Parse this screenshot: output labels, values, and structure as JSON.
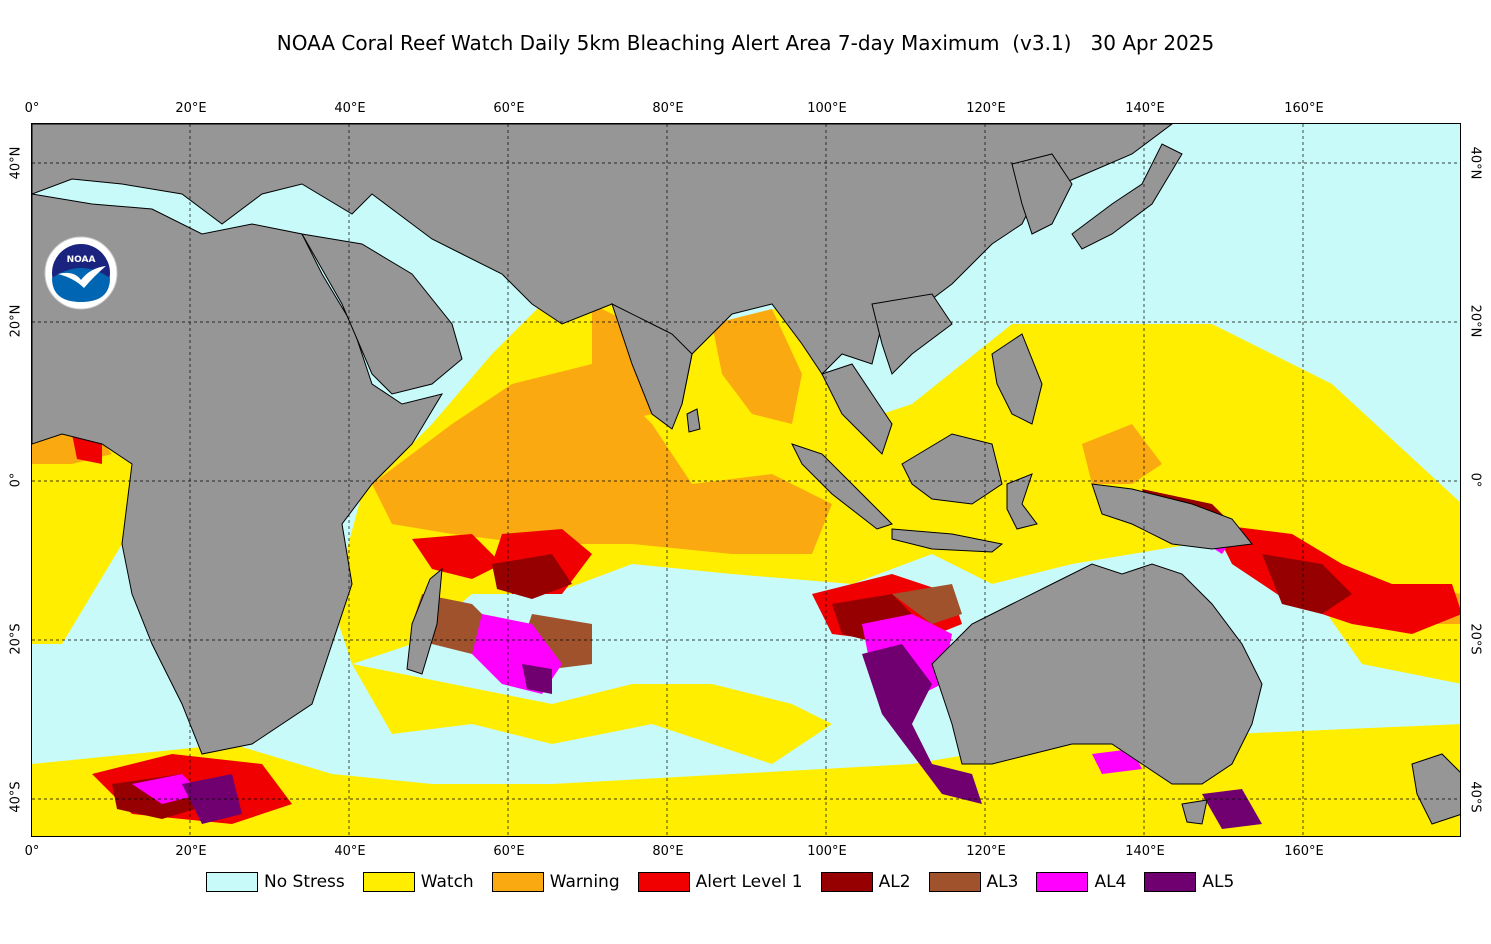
{
  "title": "NOAA Coral Reef Watch Daily 5km Bleaching Alert Area 7-day Maximum  (v3.1)   30 Apr 2025",
  "logo": {
    "text": "NOAA",
    "icon": "noaa-logo-icon"
  },
  "map": {
    "lon_range": [
      0,
      180
    ],
    "lat_range": [
      -45,
      45
    ],
    "land_color": "#969696",
    "grid": true,
    "x_ticks": [
      "0°",
      "20°E",
      "40°E",
      "60°E",
      "80°E",
      "100°E",
      "120°E",
      "140°E",
      "160°E"
    ],
    "y_ticks": [
      "40°N",
      "20°N",
      "0°",
      "20°S",
      "40°S"
    ]
  },
  "legend": [
    {
      "label": "No Stress",
      "color": "#c8fafa"
    },
    {
      "label": "Watch",
      "color": "#ffee00"
    },
    {
      "label": "Warning",
      "color": "#faaa10"
    },
    {
      "label": "Alert Level 1",
      "color": "#f00000"
    },
    {
      "label": "AL2",
      "color": "#960000"
    },
    {
      "label": "AL3",
      "color": "#a0522d"
    },
    {
      "label": "AL4",
      "color": "#ff00ff"
    },
    {
      "label": "AL5",
      "color": "#700070"
    }
  ]
}
